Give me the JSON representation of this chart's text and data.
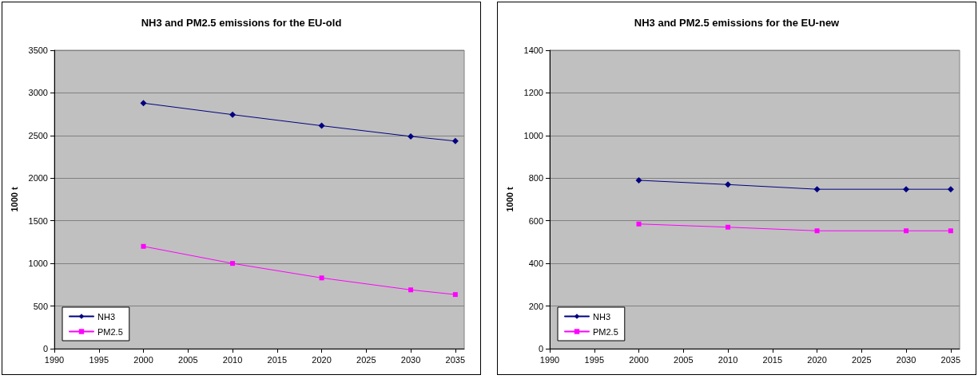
{
  "chart_data": [
    {
      "type": "line",
      "title": "NH3 and PM2.5 emissions for the EU-old",
      "ylabel": "1000 t",
      "x": [
        2000,
        2010,
        2020,
        2030,
        2035
      ],
      "series": [
        {
          "name": "NH3",
          "color": "#000080",
          "marker": "diamond",
          "values": [
            2880,
            2745,
            2615,
            2490,
            2435
          ]
        },
        {
          "name": "PM2.5",
          "color": "#ff00ff",
          "marker": "square",
          "values": [
            1200,
            1000,
            830,
            690,
            635
          ]
        }
      ],
      "xlim": [
        1990,
        2036
      ],
      "xticks": [
        1990,
        1995,
        2000,
        2005,
        2010,
        2015,
        2020,
        2025,
        2030,
        2035
      ],
      "ylim": [
        0,
        3500
      ],
      "yticks": [
        0,
        500,
        1000,
        1500,
        2000,
        2500,
        3000,
        3500
      ],
      "grid": "y",
      "legend": "bottom left",
      "line_style": "solid"
    },
    {
      "type": "line",
      "title": "NH3 and PM2.5 emissions for the EU-new",
      "ylabel": "1000 t",
      "x": [
        2000,
        2010,
        2020,
        2030,
        2035
      ],
      "series": [
        {
          "name": "NH3",
          "color": "#000080",
          "marker": "diamond",
          "values": [
            790,
            770,
            748,
            748,
            748
          ]
        },
        {
          "name": "PM2.5",
          "color": "#ff00ff",
          "marker": "square",
          "values": [
            585,
            570,
            553,
            553,
            553
          ]
        }
      ],
      "xlim": [
        1990,
        2036
      ],
      "xticks": [
        1990,
        1995,
        2000,
        2005,
        2010,
        2015,
        2020,
        2025,
        2030,
        2035
      ],
      "ylim": [
        0,
        1400
      ],
      "yticks": [
        0,
        200,
        400,
        600,
        800,
        1000,
        1200,
        1400
      ],
      "grid": "y",
      "legend": "bottom left",
      "line_style": "solid"
    }
  ]
}
